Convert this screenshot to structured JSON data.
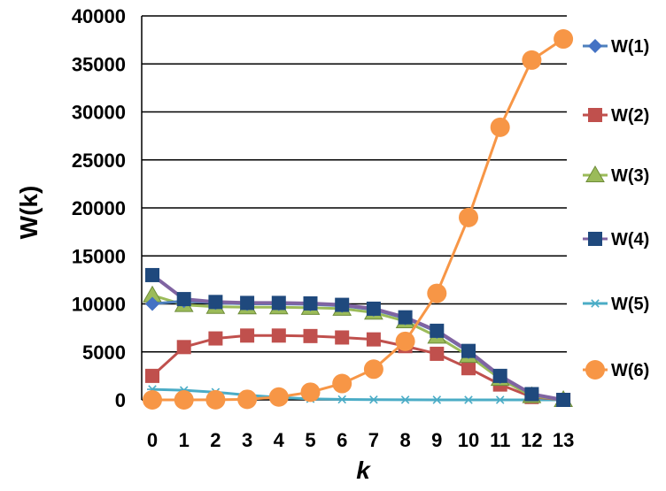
{
  "chart_data": {
    "type": "line",
    "title": "",
    "xlabel": "k",
    "ylabel": "W(k)",
    "x": [
      0,
      1,
      2,
      3,
      4,
      5,
      6,
      7,
      8,
      9,
      10,
      11,
      12,
      13
    ],
    "ylim": [
      0,
      40000
    ],
    "yticks": [
      0,
      5000,
      10000,
      15000,
      20000,
      25000,
      30000,
      35000,
      40000
    ],
    "grid": "horizontal",
    "legend_position": "right",
    "series": [
      {
        "name": "W(1)",
        "marker": "diamond",
        "color": "#4472C4",
        "line_color": "#4F81BD",
        "values": [
          10000,
          10300,
          10100,
          10000,
          10000,
          9950,
          9800,
          9400,
          8500,
          7100,
          5000,
          2400,
          600,
          0
        ]
      },
      {
        "name": "W(2)",
        "marker": "square",
        "color": "#C0504D",
        "line_color": "#C0504D",
        "values": [
          2500,
          5500,
          6400,
          6700,
          6700,
          6650,
          6500,
          6300,
          5600,
          4800,
          3300,
          1600,
          300,
          0
        ]
      },
      {
        "name": "W(3)",
        "marker": "triangle",
        "color": "#9BBB59",
        "line_color": "#9BBB59",
        "values": [
          10900,
          9900,
          9700,
          9650,
          9650,
          9600,
          9500,
          9100,
          8200,
          6600,
          4600,
          2200,
          400,
          0
        ]
      },
      {
        "name": "W(4)",
        "marker": "square",
        "color": "#1F497D",
        "line_color": "#8064A2",
        "values": [
          13000,
          10500,
          10200,
          10100,
          10100,
          10050,
          9900,
          9500,
          8600,
          7200,
          5100,
          2500,
          600,
          0
        ]
      },
      {
        "name": "W(5)",
        "marker": "star",
        "color": "#4BACC6",
        "line_color": "#4BACC6",
        "values": [
          1100,
          1000,
          800,
          500,
          250,
          100,
          50,
          20,
          10,
          5,
          2,
          1,
          0,
          0
        ]
      },
      {
        "name": "W(6)",
        "marker": "circle",
        "color": "#F79646",
        "line_color": "#F79646",
        "values": [
          0,
          0,
          10,
          60,
          300,
          800,
          1700,
          3200,
          6100,
          11100,
          19000,
          28400,
          35400,
          37600
        ]
      }
    ]
  }
}
